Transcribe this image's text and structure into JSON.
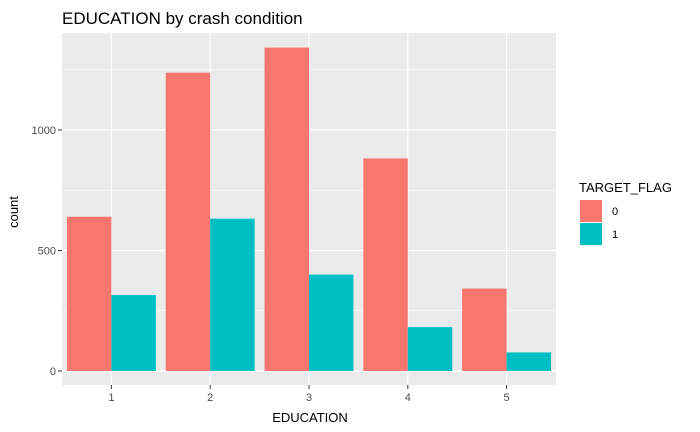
{
  "chart_data": {
    "type": "bar",
    "title": "EDUCATION by crash condition",
    "xlabel": "EDUCATION",
    "ylabel": "count",
    "categories": [
      "1",
      "2",
      "3",
      "4",
      "5"
    ],
    "series": [
      {
        "name": "0",
        "values": [
          640,
          1238,
          1342,
          882,
          342
        ],
        "color": "#F8766D"
      },
      {
        "name": "1",
        "values": [
          315,
          632,
          400,
          182,
          77
        ],
        "color": "#00BFC4"
      }
    ],
    "ylim": [
      0,
      1400
    ],
    "yticks": [
      0,
      500,
      1000
    ],
    "legend": {
      "title": "TARGET_FLAG",
      "placement": "right"
    },
    "grid": true,
    "panel_background": "#EBEBEB",
    "grid_color": "#FFFFFF"
  }
}
